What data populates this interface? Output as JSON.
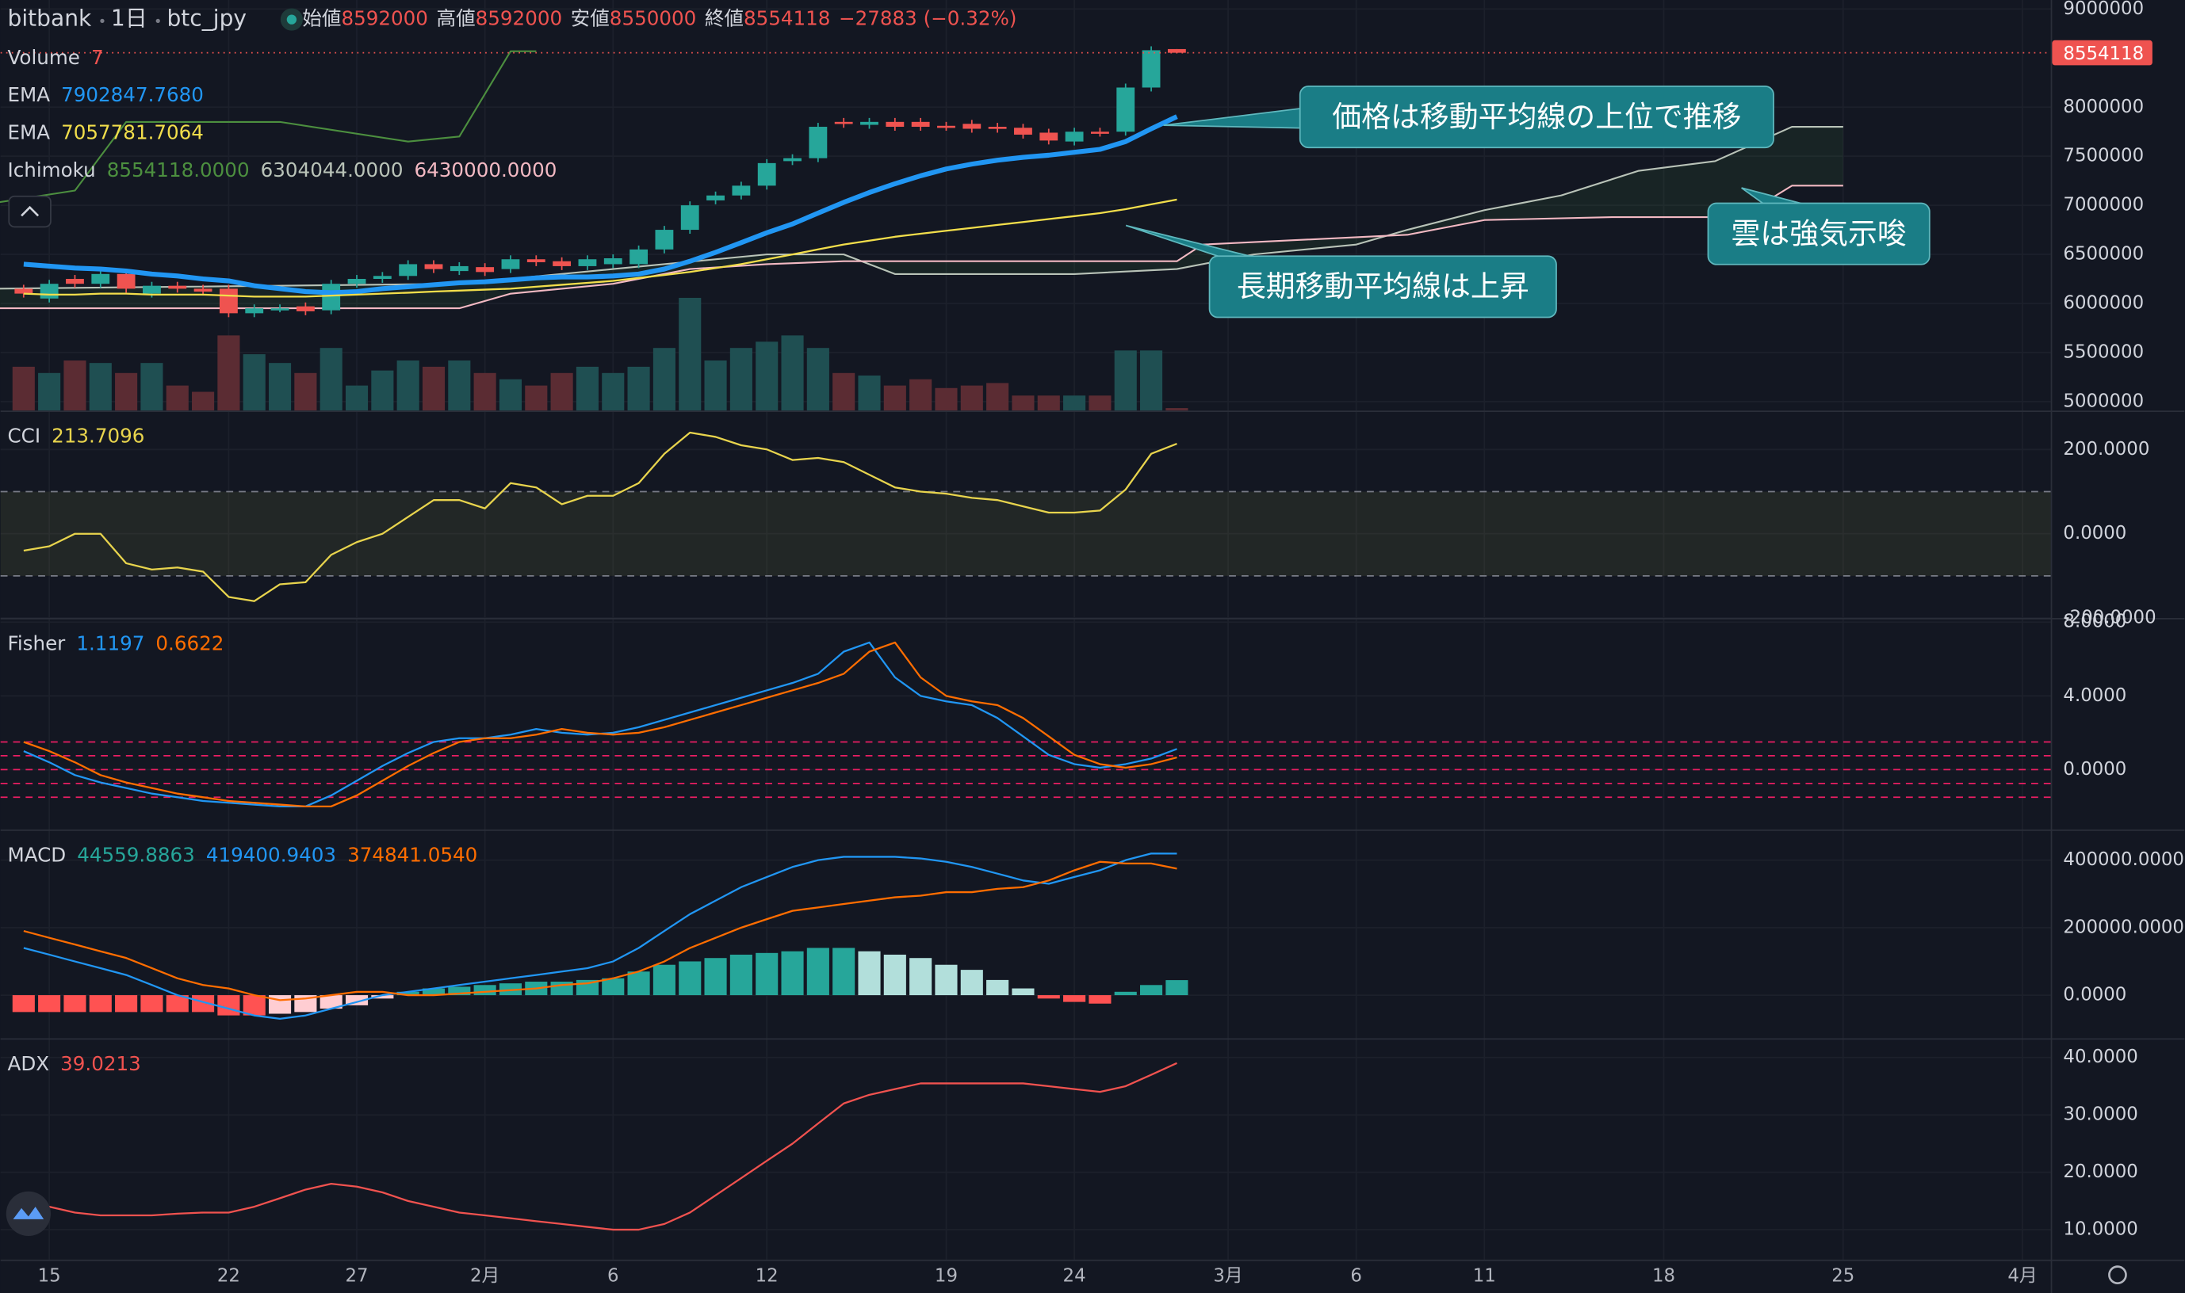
{
  "header": {
    "exchange": "bitbank",
    "interval": "1日",
    "symbol": "btc_jpy",
    "ohlc_labels": [
      "始値",
      "高値",
      "安値",
      "終値"
    ],
    "change": "−27883 (−0.32%)"
  },
  "chart_data": [
    {
      "type": "candlestick",
      "x": [
        -1,
        0,
        1,
        2,
        3,
        4,
        5,
        6,
        7,
        8,
        9,
        10,
        11,
        12,
        13,
        14,
        15,
        16,
        17,
        18,
        19,
        20,
        21,
        22,
        23,
        24,
        25,
        26,
        27,
        28,
        29,
        30,
        31,
        32,
        33,
        34,
        35,
        36,
        37,
        38,
        39,
        40,
        41,
        42,
        43,
        44
      ],
      "open": [
        6150000,
        6050000,
        6250000,
        6200000,
        6300000,
        6100000,
        6180000,
        6150000,
        6150000,
        5900000,
        5950000,
        5970000,
        5930000,
        6200000,
        6250000,
        6280000,
        6400000,
        6330000,
        6370000,
        6350000,
        6450000,
        6430000,
        6380000,
        6400000,
        6400000,
        6550000,
        6750000,
        7050000,
        7100000,
        7200000,
        7450000,
        7480000,
        7850000,
        7820000,
        7850000,
        7850000,
        7810000,
        7830000,
        7800000,
        7790000,
        7740000,
        7650000,
        7750000,
        7750000,
        8200000,
        8592000
      ],
      "high": [
        6190000,
        6240000,
        6290000,
        6340000,
        6340000,
        6220000,
        6220000,
        6190000,
        6190000,
        5990000,
        5990000,
        6010000,
        6240000,
        6290000,
        6320000,
        6440000,
        6440000,
        6420000,
        6410000,
        6490000,
        6490000,
        6470000,
        6490000,
        6500000,
        6590000,
        6790000,
        7040000,
        7140000,
        7240000,
        7470000,
        7520000,
        7840000,
        7890000,
        7890000,
        7890000,
        7890000,
        7850000,
        7870000,
        7840000,
        7830000,
        7780000,
        7790000,
        7790000,
        8240000,
        8620000,
        8592000
      ],
      "low": [
        6060000,
        6010000,
        6160000,
        6160000,
        6110000,
        6060000,
        6110000,
        6080000,
        5860000,
        5860000,
        5910000,
        5880000,
        5890000,
        6160000,
        6210000,
        6240000,
        6310000,
        6290000,
        6280000,
        6310000,
        6380000,
        6340000,
        6340000,
        6360000,
        6360000,
        6510000,
        6710000,
        7010000,
        7060000,
        7160000,
        7410000,
        7440000,
        7790000,
        7780000,
        7760000,
        7760000,
        7760000,
        7740000,
        7740000,
        7680000,
        7620000,
        7610000,
        7700000,
        7710000,
        8160000,
        8550000
      ],
      "close": [
        6100000,
        6200000,
        6200000,
        6300000,
        6150000,
        6180000,
        6150000,
        6120000,
        5900000,
        5950000,
        5950000,
        5920000,
        6200000,
        6250000,
        6280000,
        6400000,
        6350000,
        6380000,
        6320000,
        6450000,
        6420000,
        6380000,
        6450000,
        6460000,
        6550000,
        6750000,
        7000000,
        7100000,
        7200000,
        7430000,
        7480000,
        7800000,
        7830000,
        7850000,
        7800000,
        7800000,
        7800000,
        7780000,
        7780000,
        7720000,
        7660000,
        7750000,
        7740000,
        8200000,
        8580000,
        8554118
      ],
      "up_color": "#26a69a",
      "down_color": "#ef5350",
      "ylim": [
        4908000,
        9092000
      ],
      "yticks": [
        5000000,
        5500000,
        6000000,
        6500000,
        7000000,
        7500000,
        8000000,
        9000000
      ],
      "xlim": [
        -1.9,
        78.1
      ],
      "xticks": [
        {
          "value": 0,
          "label": "15"
        },
        {
          "value": 7,
          "label": "22"
        },
        {
          "value": 12,
          "label": "27"
        },
        {
          "value": 17,
          "label": "2月"
        },
        {
          "value": 22,
          "label": "6"
        },
        {
          "value": 28,
          "label": "12"
        },
        {
          "value": 35,
          "label": "19"
        },
        {
          "value": 40,
          "label": "24"
        },
        {
          "value": 46,
          "label": "3月"
        },
        {
          "value": 51,
          "label": "6"
        },
        {
          "value": 56,
          "label": "11"
        },
        {
          "value": 63,
          "label": "18"
        },
        {
          "value": 70,
          "label": "25"
        },
        {
          "value": 77,
          "label": "4月"
        }
      ],
      "grid": true,
      "volume": {
        "name": "Volume",
        "value_label": "7",
        "label_color": "#ef5350",
        "lim": [
          0,
          100
        ],
        "up_color": "#1f4f52",
        "down_color": "#5b2c33",
        "values": [
          35,
          30,
          40,
          38,
          30,
          38,
          20,
          15,
          60,
          45,
          38,
          30,
          50,
          20,
          32,
          40,
          35,
          40,
          30,
          25,
          20,
          30,
          35,
          30,
          35,
          50,
          90,
          40,
          50,
          55,
          60,
          50,
          30,
          28,
          20,
          25,
          18,
          20,
          22,
          12,
          12,
          12,
          12,
          48,
          48,
          2
        ]
      },
      "ema": [
        {
          "name": "EMA",
          "value_label": "7902847.7680",
          "color": "#2196f3",
          "width": 3.5,
          "values": [
            6400000,
            6380000,
            6360000,
            6350000,
            6330000,
            6300000,
            6280000,
            6250000,
            6230000,
            6180000,
            6150000,
            6120000,
            6110000,
            6120000,
            6150000,
            6170000,
            6190000,
            6210000,
            6220000,
            6240000,
            6260000,
            6270000,
            6270000,
            6280000,
            6300000,
            6350000,
            6430000,
            6520000,
            6620000,
            6720000,
            6810000,
            6920000,
            7030000,
            7130000,
            7220000,
            7300000,
            7370000,
            7420000,
            7460000,
            7490000,
            7510000,
            7540000,
            7570000,
            7650000,
            7780000,
            7902847.768
          ]
        },
        {
          "name": "EMA",
          "value_label": "7057781.7064",
          "color": "#f2de4b",
          "width": 1.3,
          "values": [
            6100000,
            6090000,
            6090000,
            6100000,
            6100000,
            6090000,
            6090000,
            6090000,
            6080000,
            6070000,
            6070000,
            6070000,
            6080000,
            6090000,
            6100000,
            6110000,
            6120000,
            6130000,
            6140000,
            6150000,
            6170000,
            6190000,
            6210000,
            6230000,
            6260000,
            6290000,
            6320000,
            6360000,
            6400000,
            6450000,
            6500000,
            6550000,
            6600000,
            6640000,
            6680000,
            6710000,
            6740000,
            6770000,
            6800000,
            6830000,
            6860000,
            6890000,
            6920000,
            6960000,
            7010000,
            7057781.7064
          ]
        }
      ],
      "ichimoku": {
        "name": "Ichimoku",
        "value_labels": [
          "8554118.0000",
          "6304044.0000",
          "6430000.0000"
        ],
        "cloud_color": "rgba(67,160,71,0.10)",
        "lines": [
          {
            "color": "#4c8f3f",
            "x": [
              -2,
              1,
              3,
              9,
              14,
              16,
              18,
              19
            ],
            "values": [
              7030000,
              7150000,
              7850000,
              7850000,
              7650000,
              7700000,
              8570000,
              8570000
            ]
          },
          {
            "color": "#b9c3b8",
            "x": [
              -2,
              16,
              22,
              28,
              31,
              33,
              40,
              44,
              47,
              51,
              53,
              56,
              59,
              62,
              65,
              68,
              70
            ],
            "values": [
              6150000,
              6200000,
              6350000,
              6500000,
              6500000,
              6300000,
              6300000,
              6350000,
              6500000,
              6600000,
              6750000,
              6950000,
              7100000,
              7350000,
              7450000,
              7800000,
              7800000
            ]
          },
          {
            "color": "#f3b9c3",
            "x": [
              -2,
              16,
              18,
              22,
              25,
              28,
              31,
              44,
              45,
              53,
              56,
              61,
              66,
              68,
              70
            ],
            "values": [
              5950000,
              5950000,
              6100000,
              6200000,
              6350000,
              6400000,
              6430000,
              6430000,
              6600000,
              6700000,
              6850000,
              6880000,
              6880000,
              7200000,
              7200000
            ]
          }
        ]
      },
      "annotations": [
        "価格は移動平均線の上位で推移",
        "長期移動平均線は上昇",
        "雲は強気示唆"
      ]
    },
    {
      "type": "line",
      "name": "CCI",
      "ylim": [
        -200,
        289
      ],
      "yticks": [
        {
          "value": 200,
          "label": "200.0000"
        },
        {
          "value": 0,
          "label": "0.0000"
        },
        {
          "value": -200,
          "label": "-200.0000"
        }
      ],
      "levels": [
        100,
        -100
      ],
      "level_color": "#787b86",
      "band_color": "rgba(120,123,60,0.16)",
      "series": [
        {
          "color": "#e8d44d",
          "value_label": "213.7096",
          "values": [
            -40,
            -30,
            0,
            0,
            -70,
            -85,
            -80,
            -90,
            -150,
            -160,
            -120,
            -115,
            -50,
            -20,
            0,
            40,
            80,
            80,
            60,
            120,
            110,
            70,
            90,
            90,
            120,
            190,
            240,
            230,
            210,
            200,
            175,
            180,
            170,
            140,
            110,
            100,
            95,
            85,
            80,
            65,
            50,
            50,
            55,
            105,
            190,
            213.7096
          ]
        }
      ]
    },
    {
      "type": "line",
      "name": "Fisher",
      "ylim": [
        -3.25,
        8.15
      ],
      "yticks": [
        {
          "value": 8,
          "label": "8.0000"
        },
        {
          "value": 4,
          "label": "4.0000"
        },
        {
          "value": 0,
          "label": "0.0000"
        }
      ],
      "levels": [
        1.5,
        0.75,
        0,
        -0.75,
        -1.5
      ],
      "level_color": "#e91e63",
      "series": [
        {
          "color": "#2196f3",
          "value_label": "1.1197",
          "values": [
            1.0,
            0.4,
            -0.3,
            -0.7,
            -1.0,
            -1.3,
            -1.5,
            -1.7,
            -1.8,
            -1.9,
            -2.0,
            -2.0,
            -1.4,
            -0.6,
            0.2,
            0.9,
            1.5,
            1.7,
            1.7,
            1.9,
            2.2,
            2.0,
            1.9,
            2.0,
            2.3,
            2.7,
            3.1,
            3.5,
            3.9,
            4.3,
            4.7,
            5.2,
            6.4,
            6.9,
            5.0,
            4.0,
            3.7,
            3.5,
            2.8,
            1.8,
            0.8,
            0.3,
            0.1,
            0.3,
            0.6,
            1.1197
          ]
        },
        {
          "color": "#ff6d00",
          "value_label": "0.6622",
          "values": [
            1.5,
            1.0,
            0.4,
            -0.3,
            -0.7,
            -1.0,
            -1.3,
            -1.5,
            -1.7,
            -1.8,
            -1.9,
            -2.0,
            -2.0,
            -1.4,
            -0.6,
            0.2,
            0.9,
            1.5,
            1.7,
            1.7,
            1.9,
            2.2,
            2.0,
            1.9,
            2.0,
            2.3,
            2.7,
            3.1,
            3.5,
            3.9,
            4.3,
            4.7,
            5.2,
            6.4,
            6.9,
            5.0,
            4.0,
            3.7,
            3.5,
            2.8,
            1.8,
            0.8,
            0.3,
            0.1,
            0.3,
            0.6622
          ]
        }
      ]
    },
    {
      "type": "macd",
      "name": "MACD",
      "ylim": [
        -127800,
        486600
      ],
      "yticks": [
        {
          "value": 400000,
          "label": "400000.0000"
        },
        {
          "value": 200000,
          "label": "200000.0000"
        },
        {
          "value": 0,
          "label": "0.0000"
        }
      ],
      "histogram": {
        "value_label": "44559.8863",
        "label_color": "#26a69a",
        "colors": [
          "#26a69a",
          "#b2dfdb",
          "#ff5252",
          "#ffcdd2"
        ],
        "values": [
          -50000,
          -50000,
          -50000,
          -50000,
          -50000,
          -50000,
          -50000,
          -50000,
          -60000,
          -60000,
          -55000,
          -50000,
          -40000,
          -30000,
          -10000,
          10000,
          20000,
          25000,
          30000,
          35000,
          40000,
          40000,
          45000,
          50000,
          70000,
          90000,
          100000,
          110000,
          120000,
          125000,
          130000,
          140000,
          140000,
          130000,
          120000,
          110000,
          90000,
          75000,
          45000,
          20000,
          -10000,
          -20000,
          -25000,
          10000,
          30000,
          44559.8863
        ]
      },
      "series": [
        {
          "color": "#2196f3",
          "value_label": "419400.9403",
          "values": [
            140000,
            120000,
            100000,
            80000,
            60000,
            30000,
            0,
            -20000,
            -40000,
            -60000,
            -70000,
            -60000,
            -40000,
            -20000,
            0,
            10000,
            20000,
            30000,
            40000,
            50000,
            60000,
            70000,
            80000,
            100000,
            140000,
            190000,
            240000,
            280000,
            320000,
            350000,
            380000,
            400000,
            410000,
            410000,
            410000,
            405000,
            395000,
            380000,
            360000,
            340000,
            330000,
            350000,
            370000,
            400000,
            420000,
            419400.9403
          ]
        },
        {
          "color": "#ff6d00",
          "value_label": "374841.0540",
          "values": [
            190000,
            170000,
            150000,
            130000,
            110000,
            80000,
            50000,
            30000,
            20000,
            0,
            -15000,
            -10000,
            0,
            10000,
            10000,
            0,
            0,
            5000,
            10000,
            15000,
            20000,
            30000,
            35000,
            50000,
            70000,
            100000,
            140000,
            170000,
            200000,
            225000,
            250000,
            260000,
            270000,
            280000,
            290000,
            295000,
            305000,
            305000,
            315000,
            320000,
            340000,
            370000,
            395000,
            390000,
            390000,
            374841.054
          ]
        }
      ]
    },
    {
      "type": "line",
      "name": "ADX",
      "ylim": [
        4.8,
        43.1
      ],
      "yticks": [
        {
          "value": 40,
          "label": "40.0000"
        },
        {
          "value": 30,
          "label": "30.0000"
        },
        {
          "value": 20,
          "label": "20.0000"
        },
        {
          "value": 10,
          "label": "10.0000"
        }
      ],
      "series": [
        {
          "color": "#f0524f",
          "value_label": "39.0213",
          "values": [
            15,
            14,
            13,
            12.5,
            12.5,
            12.5,
            12.8,
            13,
            13,
            14,
            15.5,
            17,
            18,
            17.5,
            16.5,
            15,
            14,
            13,
            12.5,
            12,
            11.5,
            11,
            10.5,
            10,
            10,
            11,
            13,
            16,
            19,
            22,
            25,
            28.5,
            32,
            33.5,
            34.5,
            35.5,
            35.5,
            35.5,
            35.5,
            35.5,
            35,
            34.5,
            34,
            35,
            37,
            39.0213
          ]
        }
      ]
    }
  ]
}
